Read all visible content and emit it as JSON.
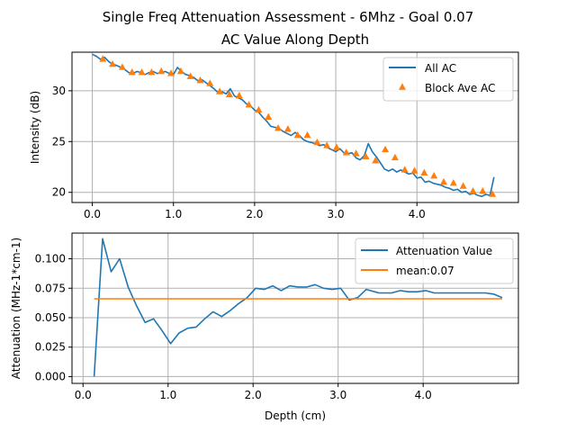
{
  "title": "Single Freq Attenuation Assessment - 6Mhz - Goal 0.07",
  "colors": {
    "blue": "#1f77b4",
    "orange": "#ff7f0e",
    "grid": "#b0b0b0"
  },
  "chart_data": [
    {
      "type": "line",
      "title": "AC Value Along Depth",
      "xlabel": "",
      "ylabel": "Intensity (dB)",
      "xlim": [
        -0.25,
        5.25
      ],
      "ylim": [
        19.0,
        33.8
      ],
      "xticks": [
        0.0,
        1.0,
        2.0,
        3.0,
        4.0
      ],
      "xtick_labels": [
        "0.0",
        "1.0",
        "2.0",
        "3.0",
        "4.0"
      ],
      "yticks": [
        20,
        25,
        30
      ],
      "ytick_labels": [
        "20",
        "25",
        "30"
      ],
      "grid": true,
      "legend_position": "top-right",
      "series": [
        {
          "name": "All AC",
          "kind": "line",
          "color": "#1f77b4",
          "x": [
            0.0,
            0.05,
            0.1,
            0.15,
            0.2,
            0.25,
            0.3,
            0.35,
            0.4,
            0.45,
            0.5,
            0.55,
            0.6,
            0.65,
            0.7,
            0.75,
            0.8,
            0.85,
            0.9,
            0.95,
            1.0,
            1.05,
            1.1,
            1.15,
            1.2,
            1.25,
            1.3,
            1.35,
            1.4,
            1.45,
            1.5,
            1.55,
            1.6,
            1.65,
            1.7,
            1.75,
            1.8,
            1.85,
            1.9,
            1.95,
            2.0,
            2.05,
            2.1,
            2.15,
            2.2,
            2.25,
            2.3,
            2.35,
            2.4,
            2.45,
            2.5,
            2.55,
            2.6,
            2.65,
            2.7,
            2.75,
            2.8,
            2.85,
            2.9,
            2.95,
            3.0,
            3.05,
            3.1,
            3.15,
            3.2,
            3.25,
            3.3,
            3.35,
            3.4,
            3.45,
            3.5,
            3.55,
            3.6,
            3.65,
            3.7,
            3.75,
            3.8,
            3.85,
            3.9,
            3.95,
            4.0,
            4.05,
            4.1,
            4.15,
            4.2,
            4.25,
            4.3,
            4.35,
            4.4,
            4.45,
            4.5,
            4.55,
            4.6,
            4.65,
            4.7,
            4.75,
            4.8,
            4.85,
            4.9,
            4.95
          ],
          "y": [
            33.6,
            33.4,
            33.1,
            33.3,
            32.9,
            32.6,
            32.5,
            32.3,
            32.1,
            31.8,
            31.7,
            31.9,
            31.8,
            31.6,
            31.8,
            31.9,
            31.7,
            31.8,
            31.9,
            31.7,
            31.6,
            32.3,
            31.9,
            31.6,
            31.5,
            31.3,
            31.0,
            31.1,
            30.8,
            30.5,
            30.2,
            29.8,
            29.9,
            29.7,
            30.2,
            29.5,
            29.3,
            29.1,
            28.7,
            28.5,
            28.1,
            27.9,
            27.4,
            27.0,
            26.5,
            26.4,
            26.3,
            26.0,
            25.8,
            25.6,
            25.9,
            25.6,
            25.2,
            25.0,
            24.9,
            24.8,
            24.6,
            24.7,
            24.4,
            24.2,
            24.0,
            24.3,
            23.9,
            23.8,
            23.9,
            23.4,
            23.2,
            23.6,
            24.8,
            24.0,
            23.5,
            22.9,
            22.3,
            22.1,
            22.3,
            22.0,
            22.2,
            22.0,
            21.8,
            21.9,
            21.4,
            21.5,
            21.0,
            21.1,
            20.9,
            20.8,
            20.7,
            20.5,
            20.4,
            20.2,
            20.3,
            20.0,
            20.1,
            19.8,
            19.9,
            19.7,
            19.6,
            19.8,
            19.7,
            21.5
          ]
        },
        {
          "name": "Block Ave AC",
          "kind": "scatter",
          "marker": "triangle",
          "color": "#ff7f0e",
          "x": [
            0.13,
            0.25,
            0.37,
            0.49,
            0.61,
            0.73,
            0.85,
            0.97,
            1.09,
            1.21,
            1.33,
            1.45,
            1.57,
            1.69,
            1.81,
            1.93,
            2.05,
            2.17,
            2.29,
            2.41,
            2.53,
            2.65,
            2.77,
            2.89,
            3.01,
            3.13,
            3.25,
            3.37,
            3.49,
            3.61,
            3.73,
            3.85,
            3.97,
            4.09,
            4.21,
            4.33,
            4.45,
            4.57,
            4.69,
            4.81,
            4.93
          ],
          "y": [
            33.1,
            32.6,
            32.3,
            31.8,
            31.8,
            31.8,
            31.9,
            31.7,
            31.9,
            31.4,
            31.0,
            30.7,
            29.9,
            29.6,
            29.5,
            28.6,
            28.1,
            27.4,
            26.3,
            26.2,
            25.6,
            25.6,
            24.9,
            24.6,
            24.4,
            23.9,
            23.8,
            23.5,
            23.1,
            24.2,
            23.4,
            22.2,
            22.1,
            21.9,
            21.6,
            21.0,
            20.9,
            20.6,
            20.1,
            20.1,
            19.8
          ]
        }
      ]
    },
    {
      "type": "line",
      "title": "",
      "xlabel": "Depth (cm)",
      "ylabel": "Attenuation (MHz-1*cm-1)",
      "xlim": [
        -0.13,
        5.12
      ],
      "ylim": [
        -0.0058,
        0.1218
      ],
      "xticks": [
        0.0,
        1.0,
        2.0,
        3.0,
        4.0
      ],
      "xtick_labels": [
        "0.0",
        "1.0",
        "2.0",
        "3.0",
        "4.0"
      ],
      "yticks": [
        0.0,
        0.025,
        0.05,
        0.075,
        0.1
      ],
      "ytick_labels": [
        "0.000",
        "0.025",
        "0.050",
        "0.075",
        "0.100"
      ],
      "grid": true,
      "legend_position": "top-right",
      "series": [
        {
          "name": "Attenuation Value",
          "kind": "line",
          "color": "#1f77b4",
          "x": [
            0.13,
            0.23,
            0.33,
            0.43,
            0.53,
            0.63,
            0.73,
            0.83,
            0.93,
            1.03,
            1.13,
            1.23,
            1.33,
            1.43,
            1.53,
            1.63,
            1.73,
            1.83,
            1.93,
            2.03,
            2.13,
            2.23,
            2.33,
            2.43,
            2.53,
            2.63,
            2.73,
            2.83,
            2.93,
            3.03,
            3.13,
            3.23,
            3.33,
            3.43,
            3.48,
            3.58,
            3.63,
            3.73,
            3.83,
            3.93,
            4.03,
            4.13,
            4.23,
            4.33,
            4.43,
            4.53,
            4.63,
            4.73,
            4.83,
            4.93
          ],
          "y": [
            0.0,
            0.117,
            0.089,
            0.1,
            0.076,
            0.06,
            0.046,
            0.049,
            0.039,
            0.028,
            0.037,
            0.041,
            0.042,
            0.049,
            0.055,
            0.051,
            0.056,
            0.062,
            0.067,
            0.075,
            0.074,
            0.077,
            0.073,
            0.077,
            0.076,
            0.076,
            0.078,
            0.075,
            0.074,
            0.075,
            0.065,
            0.067,
            0.074,
            0.072,
            0.071,
            0.071,
            0.071,
            0.073,
            0.072,
            0.072,
            0.073,
            0.071,
            0.071,
            0.071,
            0.071,
            0.071,
            0.071,
            0.071,
            0.07,
            0.067
          ]
        },
        {
          "name": "mean:0.07",
          "kind": "line",
          "color": "#ff7f0e",
          "x": [
            0.13,
            4.93
          ],
          "y": [
            0.066,
            0.066
          ]
        }
      ]
    }
  ]
}
